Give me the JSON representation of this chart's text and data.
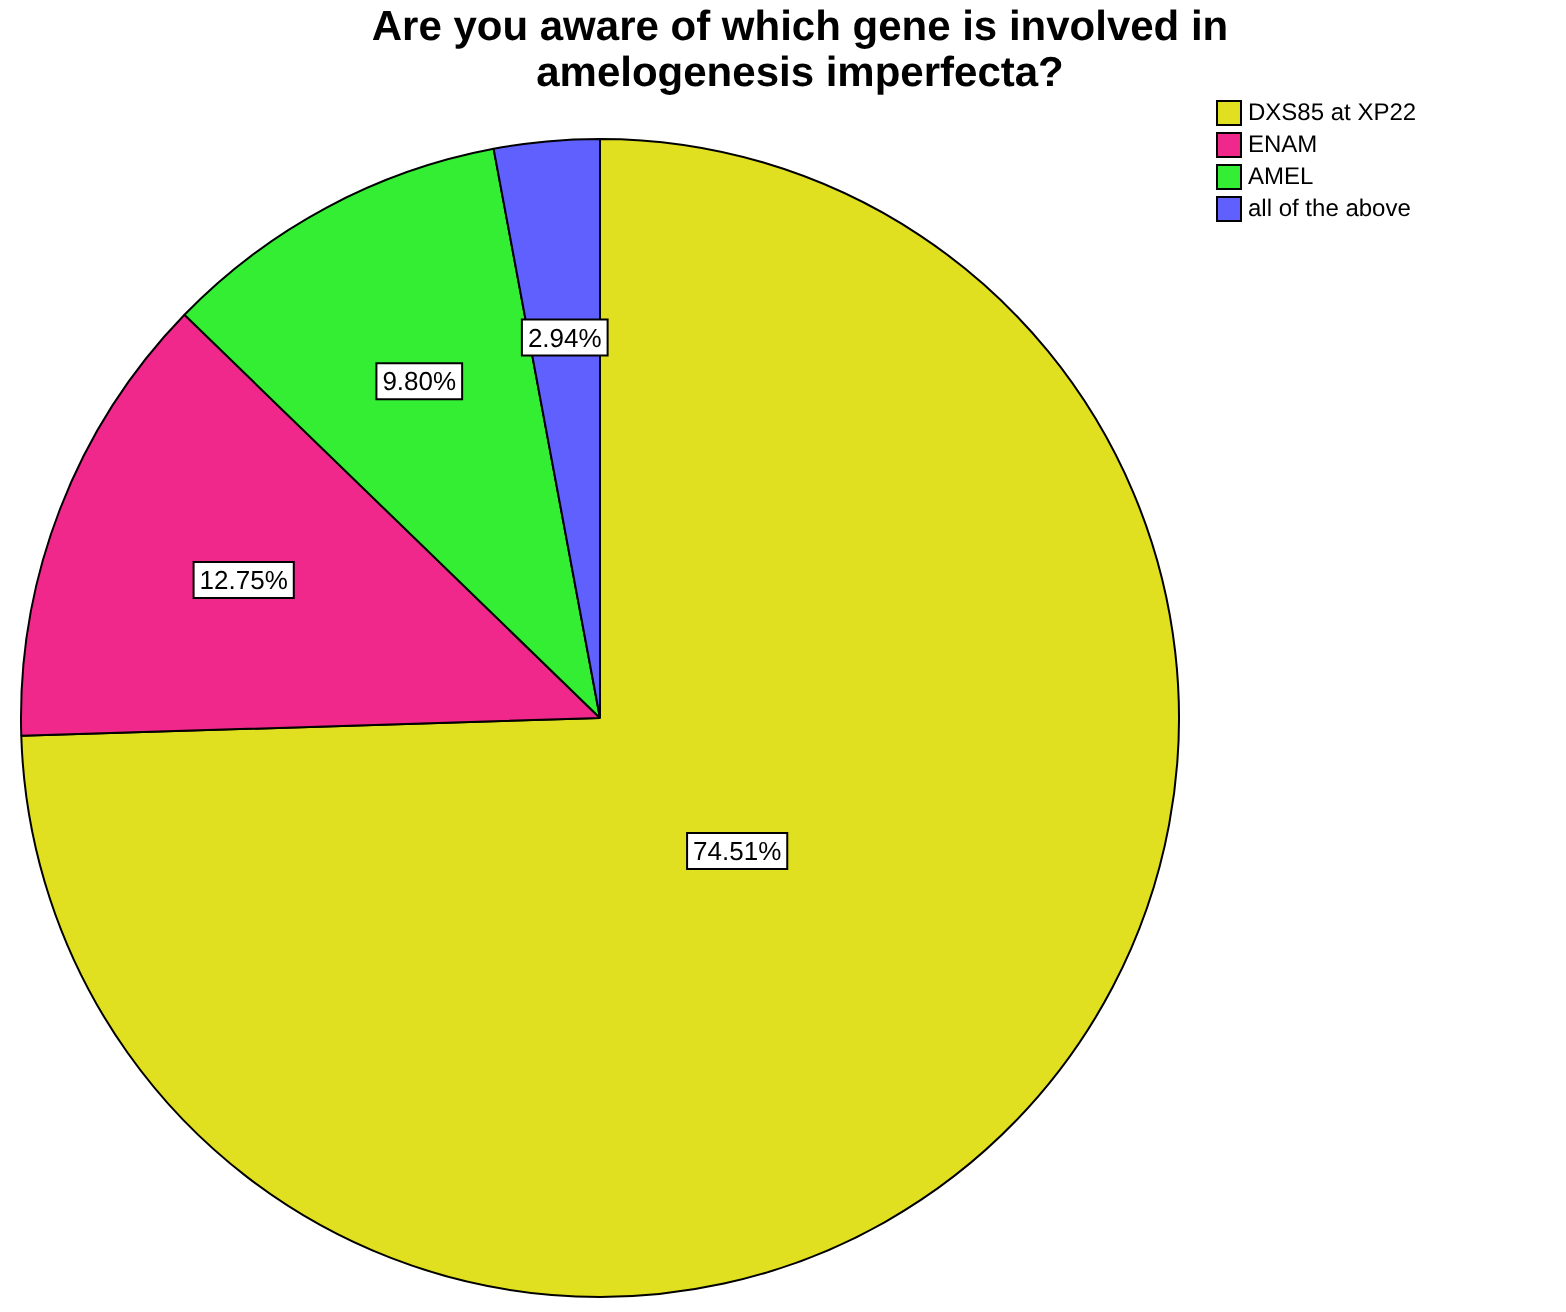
{
  "chart_data": {
    "type": "pie",
    "title": "Are you aware of which gene is involved in amelogenesis imperfecta?",
    "categories": [
      "DXS85 at XP22",
      "ENAM",
      "AMEL",
      "all of the above"
    ],
    "values": [
      74.51,
      12.75,
      9.8,
      2.94
    ],
    "colors": [
      "#e0e020",
      "#f0288c",
      "#33ee33",
      "#6060ff"
    ],
    "value_labels": [
      "74.51%",
      "12.75%",
      "9.80%",
      "2.94%"
    ],
    "legend": "top right"
  }
}
